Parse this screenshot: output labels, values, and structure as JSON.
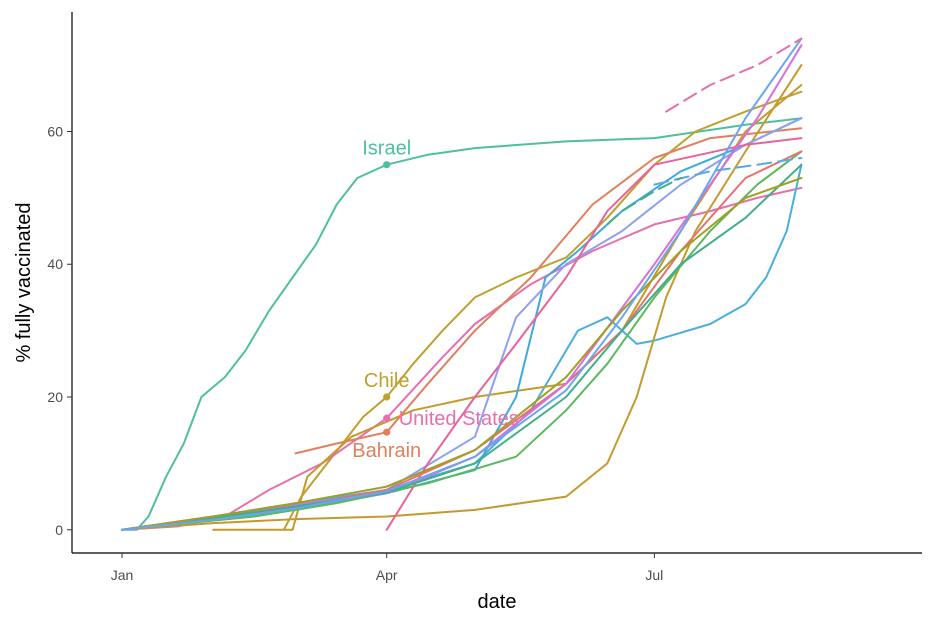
{
  "chart_data": {
    "type": "line",
    "title": "",
    "xlabel": "date",
    "ylabel": "% fully vaccinated",
    "x_tick_labels": [
      "Jan",
      "Apr",
      "Jul"
    ],
    "x_tick_dates": [
      "2021-01-01",
      "2021-04-01",
      "2021-07-01"
    ],
    "xlim": [
      "2020-12-15",
      "2021-09-30"
    ],
    "y_ticks": [
      0,
      20,
      40,
      60
    ],
    "ylim": [
      -3.5,
      78
    ],
    "grid": false,
    "legend": "none",
    "highlight_date": "2021-04-01",
    "annotations": [
      {
        "label": "Israel",
        "y": 55,
        "color": "#4fbfa0"
      },
      {
        "label": "Chile",
        "y": 20,
        "color": "#c0a02c"
      },
      {
        "label": "United States",
        "y": 16.8,
        "color": "#e76fae"
      },
      {
        "label": "Bahrain",
        "y": 14.7,
        "color": "#e0805e"
      }
    ],
    "series": [
      {
        "name": "Israel",
        "color": "#4fbfa0",
        "points": [
          [
            "2021-01-01",
            0
          ],
          [
            "2021-01-06",
            0
          ],
          [
            "2021-01-10",
            2
          ],
          [
            "2021-01-16",
            8
          ],
          [
            "2021-01-22",
            13
          ],
          [
            "2021-01-28",
            20
          ],
          [
            "2021-02-05",
            23
          ],
          [
            "2021-02-12",
            27
          ],
          [
            "2021-02-20",
            33
          ],
          [
            "2021-02-28",
            38
          ],
          [
            "2021-03-08",
            43
          ],
          [
            "2021-03-15",
            49
          ],
          [
            "2021-03-22",
            53
          ],
          [
            "2021-04-01",
            55
          ],
          [
            "2021-04-15",
            56.5
          ],
          [
            "2021-05-01",
            57.5
          ],
          [
            "2021-06-01",
            58.5
          ],
          [
            "2021-07-01",
            59
          ],
          [
            "2021-08-01",
            61
          ],
          [
            "2021-08-20",
            62
          ]
        ]
      },
      {
        "name": "Chile",
        "color": "#c0a02c",
        "points": [
          [
            "2021-02-25",
            0
          ],
          [
            "2021-03-03",
            5
          ],
          [
            "2021-03-10",
            9
          ],
          [
            "2021-03-17",
            13
          ],
          [
            "2021-03-24",
            17
          ],
          [
            "2021-04-01",
            20
          ],
          [
            "2021-04-10",
            25
          ],
          [
            "2021-04-20",
            30
          ],
          [
            "2021-05-01",
            35
          ],
          [
            "2021-05-15",
            38
          ],
          [
            "2021-06-01",
            41
          ],
          [
            "2021-06-15",
            47
          ],
          [
            "2021-07-01",
            55
          ],
          [
            "2021-07-15",
            60
          ],
          [
            "2021-08-01",
            63
          ],
          [
            "2021-08-20",
            66
          ]
        ]
      },
      {
        "name": "United States",
        "color": "#e76fae",
        "points": [
          [
            "2021-01-01",
            0
          ],
          [
            "2021-01-20",
            0.5
          ],
          [
            "2021-02-05",
            2
          ],
          [
            "2021-02-20",
            6
          ],
          [
            "2021-03-10",
            10
          ],
          [
            "2021-04-01",
            16.8
          ],
          [
            "2021-04-20",
            26
          ],
          [
            "2021-05-01",
            31
          ],
          [
            "2021-05-20",
            37
          ],
          [
            "2021-06-10",
            42
          ],
          [
            "2021-07-01",
            46
          ],
          [
            "2021-07-20",
            48
          ],
          [
            "2021-08-05",
            50
          ],
          [
            "2021-08-20",
            51.5
          ]
        ]
      },
      {
        "name": "Bahrain",
        "color": "#e0805e",
        "points": [
          [
            "2021-03-01",
            11.5
          ],
          [
            "2021-03-15",
            13
          ],
          [
            "2021-04-01",
            14.7
          ],
          [
            "2021-04-15",
            22
          ],
          [
            "2021-05-01",
            30
          ],
          [
            "2021-05-20",
            38
          ],
          [
            "2021-06-10",
            49
          ],
          [
            "2021-07-01",
            56
          ],
          [
            "2021-07-20",
            59
          ],
          [
            "2021-08-20",
            60.5
          ]
        ]
      },
      {
        "name": "",
        "color": "#4aaede",
        "points": [
          [
            "2021-01-01",
            0
          ],
          [
            "2021-02-01",
            2
          ],
          [
            "2021-03-01",
            4
          ],
          [
            "2021-04-01",
            6
          ],
          [
            "2021-05-01",
            10
          ],
          [
            "2021-05-20",
            18
          ],
          [
            "2021-06-05",
            30
          ],
          [
            "2021-06-15",
            32
          ],
          [
            "2021-06-25",
            28
          ],
          [
            "2021-07-01",
            28.5
          ],
          [
            "2021-07-20",
            31
          ],
          [
            "2021-08-01",
            34
          ],
          [
            "2021-08-08",
            38
          ],
          [
            "2021-08-15",
            45
          ],
          [
            "2021-08-20",
            55
          ]
        ]
      },
      {
        "name": "",
        "color": "#c49a2c",
        "points": [
          [
            "2021-01-01",
            0
          ],
          [
            "2021-02-01",
            1
          ],
          [
            "2021-03-01",
            1.6
          ],
          [
            "2021-04-01",
            2
          ],
          [
            "2021-05-01",
            3
          ],
          [
            "2021-06-01",
            5
          ],
          [
            "2021-06-15",
            10
          ],
          [
            "2021-06-25",
            20
          ],
          [
            "2021-07-05",
            35
          ],
          [
            "2021-07-15",
            45
          ],
          [
            "2021-08-01",
            57
          ],
          [
            "2021-08-20",
            70
          ]
        ]
      },
      {
        "name": "",
        "color": "#c49a2c",
        "points": [
          [
            "2021-02-01",
            0
          ],
          [
            "2021-02-28",
            0
          ],
          [
            "2021-03-05",
            8
          ],
          [
            "2021-03-20",
            14
          ],
          [
            "2021-04-10",
            18
          ],
          [
            "2021-05-01",
            20
          ],
          [
            "2021-06-01",
            22
          ],
          [
            "2021-06-20",
            30
          ],
          [
            "2021-07-10",
            45
          ],
          [
            "2021-08-01",
            60
          ],
          [
            "2021-08-20",
            67
          ]
        ]
      },
      {
        "name": "",
        "color": "#3da9e0",
        "points": [
          [
            "2021-01-01",
            0
          ],
          [
            "2021-02-01",
            1.5
          ],
          [
            "2021-03-01",
            3
          ],
          [
            "2021-04-01",
            5.5
          ],
          [
            "2021-05-01",
            9
          ],
          [
            "2021-05-15",
            20
          ],
          [
            "2021-05-25",
            38
          ],
          [
            "2021-06-05",
            42
          ],
          [
            "2021-06-20",
            48
          ],
          [
            "2021-07-10",
            54
          ],
          [
            "2021-08-01",
            58
          ],
          [
            "2021-08-20",
            62
          ]
        ]
      },
      {
        "name": "",
        "color": "#8fa0f0",
        "points": [
          [
            "2021-01-01",
            0
          ],
          [
            "2021-02-01",
            2
          ],
          [
            "2021-03-01",
            3.5
          ],
          [
            "2021-04-01",
            6
          ],
          [
            "2021-05-01",
            14
          ],
          [
            "2021-05-15",
            32
          ],
          [
            "2021-06-01",
            40
          ],
          [
            "2021-06-20",
            45
          ],
          [
            "2021-07-10",
            52
          ],
          [
            "2021-08-01",
            58
          ],
          [
            "2021-08-20",
            62
          ]
        ]
      },
      {
        "name": "",
        "color": "#e8629c",
        "points": [
          [
            "2021-04-01",
            0
          ],
          [
            "2021-04-15",
            10
          ],
          [
            "2021-05-01",
            20
          ],
          [
            "2021-05-15",
            28
          ],
          [
            "2021-06-01",
            38
          ],
          [
            "2021-06-15",
            48
          ],
          [
            "2021-07-01",
            55
          ],
          [
            "2021-08-01",
            58
          ],
          [
            "2021-08-20",
            59
          ]
        ]
      },
      {
        "name": "",
        "color": "#5cb85c",
        "points": [
          [
            "2021-01-01",
            0
          ],
          [
            "2021-02-15",
            2
          ],
          [
            "2021-03-15",
            4
          ],
          [
            "2021-04-15",
            7
          ],
          [
            "2021-05-15",
            11
          ],
          [
            "2021-06-01",
            18
          ],
          [
            "2021-06-15",
            25
          ],
          [
            "2021-07-01",
            35
          ],
          [
            "2021-07-20",
            45
          ],
          [
            "2021-08-05",
            52
          ],
          [
            "2021-08-20",
            57
          ]
        ]
      },
      {
        "name": "",
        "color": "#e87070",
        "points": [
          [
            "2021-01-01",
            0
          ],
          [
            "2021-02-01",
            1.5
          ],
          [
            "2021-03-01",
            3.5
          ],
          [
            "2021-04-01",
            6
          ],
          [
            "2021-05-01",
            12
          ],
          [
            "2021-06-01",
            22
          ],
          [
            "2021-06-20",
            30
          ],
          [
            "2021-07-10",
            42
          ],
          [
            "2021-08-01",
            53
          ],
          [
            "2021-08-20",
            57
          ]
        ]
      },
      {
        "name": "",
        "color": "#d66fe0",
        "points": [
          [
            "2021-01-01",
            0
          ],
          [
            "2021-02-01",
            2
          ],
          [
            "2021-03-01",
            3.8
          ],
          [
            "2021-04-01",
            5.5
          ],
          [
            "2021-05-01",
            11
          ],
          [
            "2021-06-01",
            22
          ],
          [
            "2021-07-01",
            40
          ],
          [
            "2021-07-20",
            52
          ],
          [
            "2021-08-05",
            62
          ],
          [
            "2021-08-20",
            73
          ]
        ]
      },
      {
        "name": "",
        "color": "#3fae8a",
        "points": [
          [
            "2021-01-01",
            0
          ],
          [
            "2021-02-01",
            1.8
          ],
          [
            "2021-03-01",
            3.5
          ],
          [
            "2021-04-01",
            5.6
          ],
          [
            "2021-05-01",
            10
          ],
          [
            "2021-06-01",
            20
          ],
          [
            "2021-06-20",
            30
          ],
          [
            "2021-07-10",
            40
          ],
          [
            "2021-08-01",
            47
          ],
          [
            "2021-08-20",
            55
          ]
        ]
      },
      {
        "name": "",
        "color": "#a0a020",
        "points": [
          [
            "2021-01-01",
            0
          ],
          [
            "2021-02-01",
            2
          ],
          [
            "2021-03-01",
            4
          ],
          [
            "2021-04-01",
            6.5
          ],
          [
            "2021-05-01",
            12
          ],
          [
            "2021-06-01",
            23
          ],
          [
            "2021-06-20",
            33
          ],
          [
            "2021-07-10",
            42
          ],
          [
            "2021-08-01",
            50
          ],
          [
            "2021-08-20",
            53
          ]
        ]
      },
      {
        "name": "",
        "color": "#6aa6f0",
        "points": [
          [
            "2021-01-01",
            0
          ],
          [
            "2021-02-01",
            1.5
          ],
          [
            "2021-03-01",
            3.2
          ],
          [
            "2021-04-01",
            5.8
          ],
          [
            "2021-05-01",
            11
          ],
          [
            "2021-06-01",
            21
          ],
          [
            "2021-06-20",
            32
          ],
          [
            "2021-07-10",
            45
          ],
          [
            "2021-08-01",
            62
          ],
          [
            "2021-08-20",
            74
          ]
        ]
      },
      {
        "name": "",
        "color": "#e76fae",
        "dashed": true,
        "points": [
          [
            "2021-07-05",
            63
          ],
          [
            "2021-07-20",
            67
          ],
          [
            "2021-08-05",
            70
          ],
          [
            "2021-08-20",
            74
          ]
        ]
      },
      {
        "name": "",
        "color": "#5aa8e8",
        "dashed": true,
        "points": [
          [
            "2021-07-01",
            52
          ],
          [
            "2021-07-20",
            54
          ],
          [
            "2021-08-05",
            55
          ],
          [
            "2021-08-20",
            56
          ]
        ]
      },
      {
        "name": "",
        "color": "#3fae8a",
        "dashed": true,
        "points": [
          [
            "2021-06-15",
            46
          ],
          [
            "2021-06-20",
            48
          ],
          [
            "2021-07-01",
            51
          ],
          [
            "2021-07-10",
            53
          ]
        ]
      }
    ]
  }
}
